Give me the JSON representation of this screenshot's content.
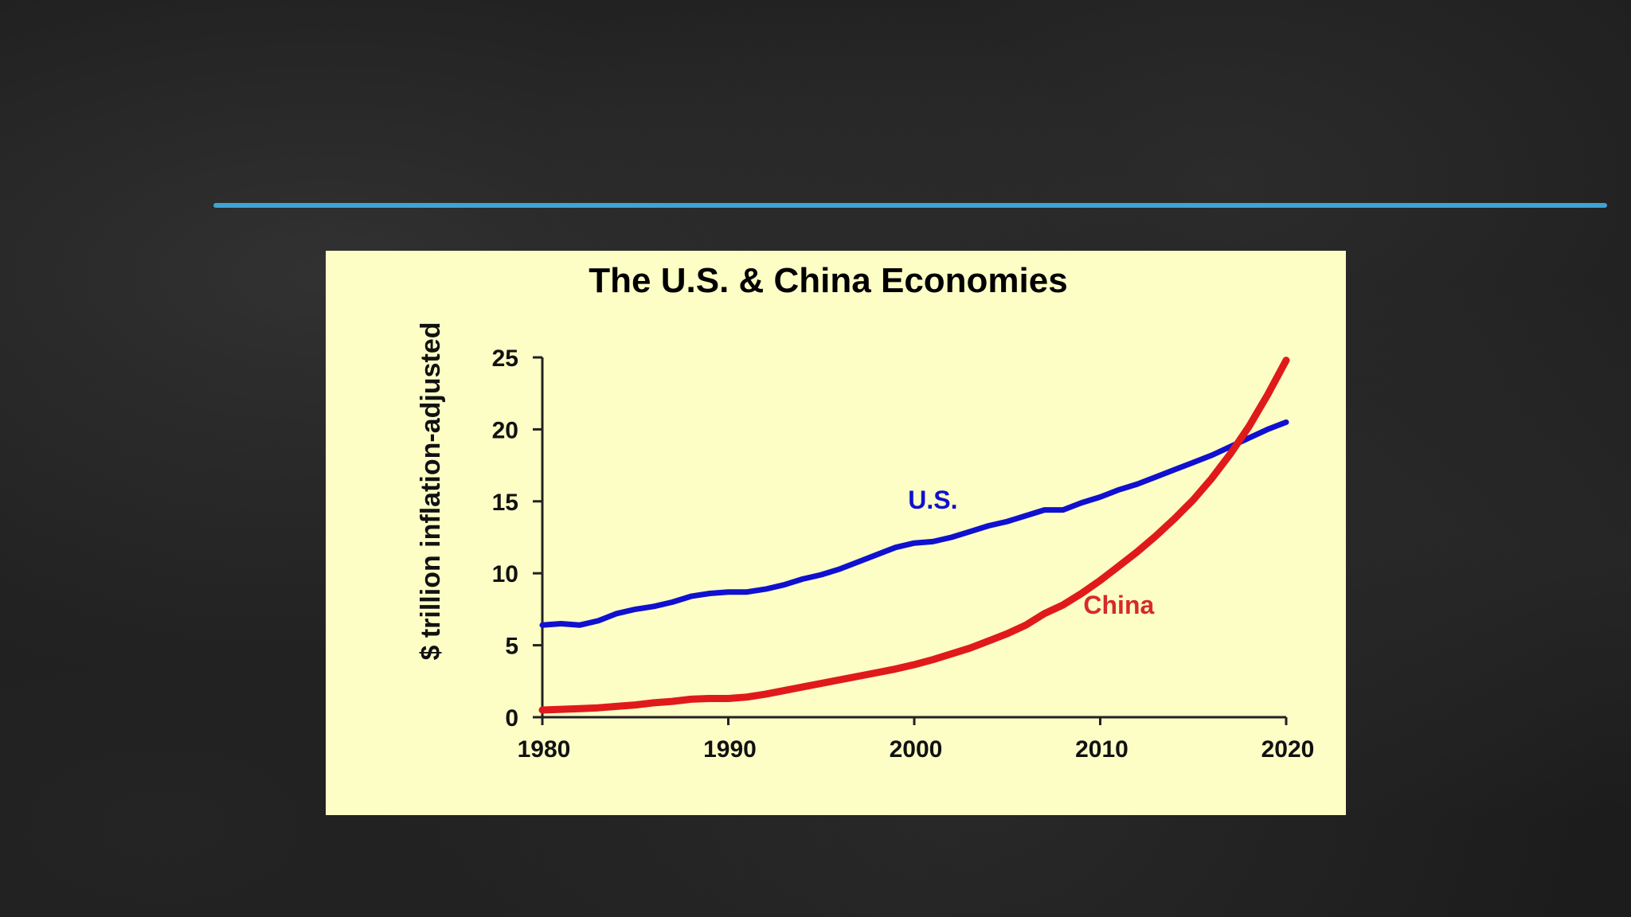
{
  "colors": {
    "background": "#1c1c1c",
    "accent_rule": "#3fa3d4",
    "panel_background": "#fdfdc6",
    "axis": "#222222",
    "us_series": "#1010d0",
    "china_series": "#e01a1a",
    "china_label": "#d62a2a"
  },
  "chart_data": {
    "type": "line",
    "title": "The U.S. & China Economies",
    "xlabel": "",
    "ylabel": "$ trillion inflation-adjusted",
    "xlim": [
      1980,
      2020
    ],
    "ylim": [
      0,
      25
    ],
    "x_ticks": [
      "1980",
      "1990",
      "2000",
      "2010",
      "2020"
    ],
    "y_ticks": [
      "0",
      "5",
      "10",
      "15",
      "20",
      "25"
    ],
    "grid": false,
    "legend": "inline labels",
    "series": [
      {
        "name": "U.S.",
        "x": [
          1980,
          1981,
          1982,
          1983,
          1984,
          1985,
          1986,
          1987,
          1988,
          1989,
          1990,
          1991,
          1992,
          1993,
          1994,
          1995,
          1996,
          1997,
          1998,
          1999,
          2000,
          2001,
          2002,
          2003,
          2004,
          2005,
          2006,
          2007,
          2008,
          2009,
          2010,
          2011,
          2012,
          2013,
          2014,
          2015,
          2016,
          2017,
          2018,
          2019,
          2020
        ],
        "y": [
          6.4,
          6.5,
          6.4,
          6.7,
          7.2,
          7.5,
          7.7,
          8.0,
          8.4,
          8.6,
          8.7,
          8.7,
          8.9,
          9.2,
          9.6,
          9.9,
          10.3,
          10.8,
          11.3,
          11.8,
          12.1,
          12.2,
          12.5,
          12.9,
          13.3,
          13.6,
          14.0,
          14.4,
          14.4,
          14.9,
          15.3,
          15.8,
          16.2,
          16.7,
          17.2,
          17.7,
          18.2,
          18.8,
          19.4,
          20.0,
          20.5
        ]
      },
      {
        "name": "China",
        "x": [
          1980,
          1981,
          1982,
          1983,
          1984,
          1985,
          1986,
          1987,
          1988,
          1989,
          1990,
          1991,
          1992,
          1993,
          1994,
          1995,
          1996,
          1997,
          1998,
          1999,
          2000,
          2001,
          2002,
          2003,
          2004,
          2005,
          2006,
          2007,
          2008,
          2009,
          2010,
          2011,
          2012,
          2013,
          2014,
          2015,
          2016,
          2017,
          2018,
          2019,
          2020
        ],
        "y": [
          0.5,
          0.55,
          0.6,
          0.65,
          0.75,
          0.85,
          1.0,
          1.1,
          1.25,
          1.3,
          1.3,
          1.4,
          1.6,
          1.85,
          2.1,
          2.35,
          2.6,
          2.85,
          3.1,
          3.35,
          3.65,
          4.0,
          4.4,
          4.8,
          5.3,
          5.8,
          6.4,
          7.2,
          7.8,
          8.6,
          9.5,
          10.5,
          11.5,
          12.6,
          13.8,
          15.1,
          16.6,
          18.3,
          20.2,
          22.4,
          24.8
        ]
      }
    ],
    "annotations": [
      {
        "text": "U.S.",
        "x": 2001,
        "y": 14.5,
        "series": "U.S."
      },
      {
        "text": "China",
        "x": 2011,
        "y": 7.2,
        "series": "China"
      }
    ]
  }
}
